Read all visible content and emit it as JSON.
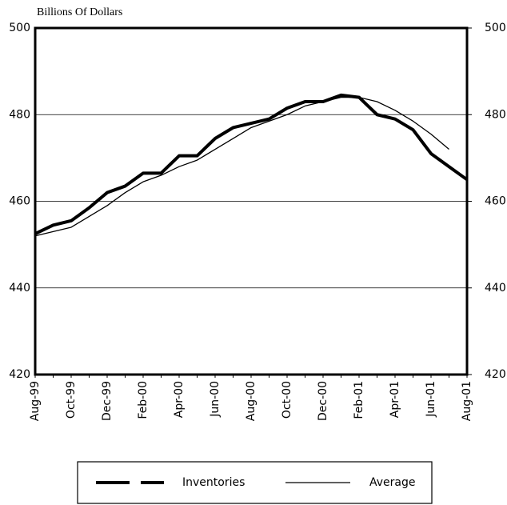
{
  "chart_data": {
    "type": "line",
    "title": "Billions Of Dollars",
    "categories": [
      "Aug-99",
      null,
      "Oct-99",
      null,
      "Dec-99",
      null,
      "Feb-00",
      null,
      "Apr-00",
      null,
      "Jun-00",
      null,
      "Aug-00",
      null,
      "Oct-00",
      null,
      "Dec-00",
      null,
      "Feb-01",
      null,
      "Apr-01",
      null,
      "Jun-01",
      null,
      "Aug-01"
    ],
    "series": [
      {
        "name": "Inventories",
        "color": "#000000",
        "values": [
          452.5,
          454.5,
          455.5,
          458.5,
          462,
          463.5,
          466.5,
          466.5,
          470.5,
          470.5,
          474.5,
          477,
          478,
          479,
          481.5,
          483,
          483,
          484.5,
          484,
          480,
          479,
          476.5,
          471,
          468,
          465
        ]
      },
      {
        "name": "Average",
        "color": "#000000",
        "values": [
          452,
          453,
          454,
          456.5,
          459,
          462,
          464.5,
          466,
          468,
          469.5,
          472,
          474.5,
          477,
          478.5,
          480,
          482,
          483,
          484,
          484,
          483,
          481,
          478.5,
          475.5,
          472,
          null
        ]
      }
    ],
    "ylim": [
      420,
      500
    ],
    "yticks": [
      420,
      440,
      460,
      480,
      500
    ],
    "y2lim": [
      420,
      500
    ],
    "y2ticks": [
      420,
      440,
      460,
      480,
      500
    ],
    "grid": true
  }
}
